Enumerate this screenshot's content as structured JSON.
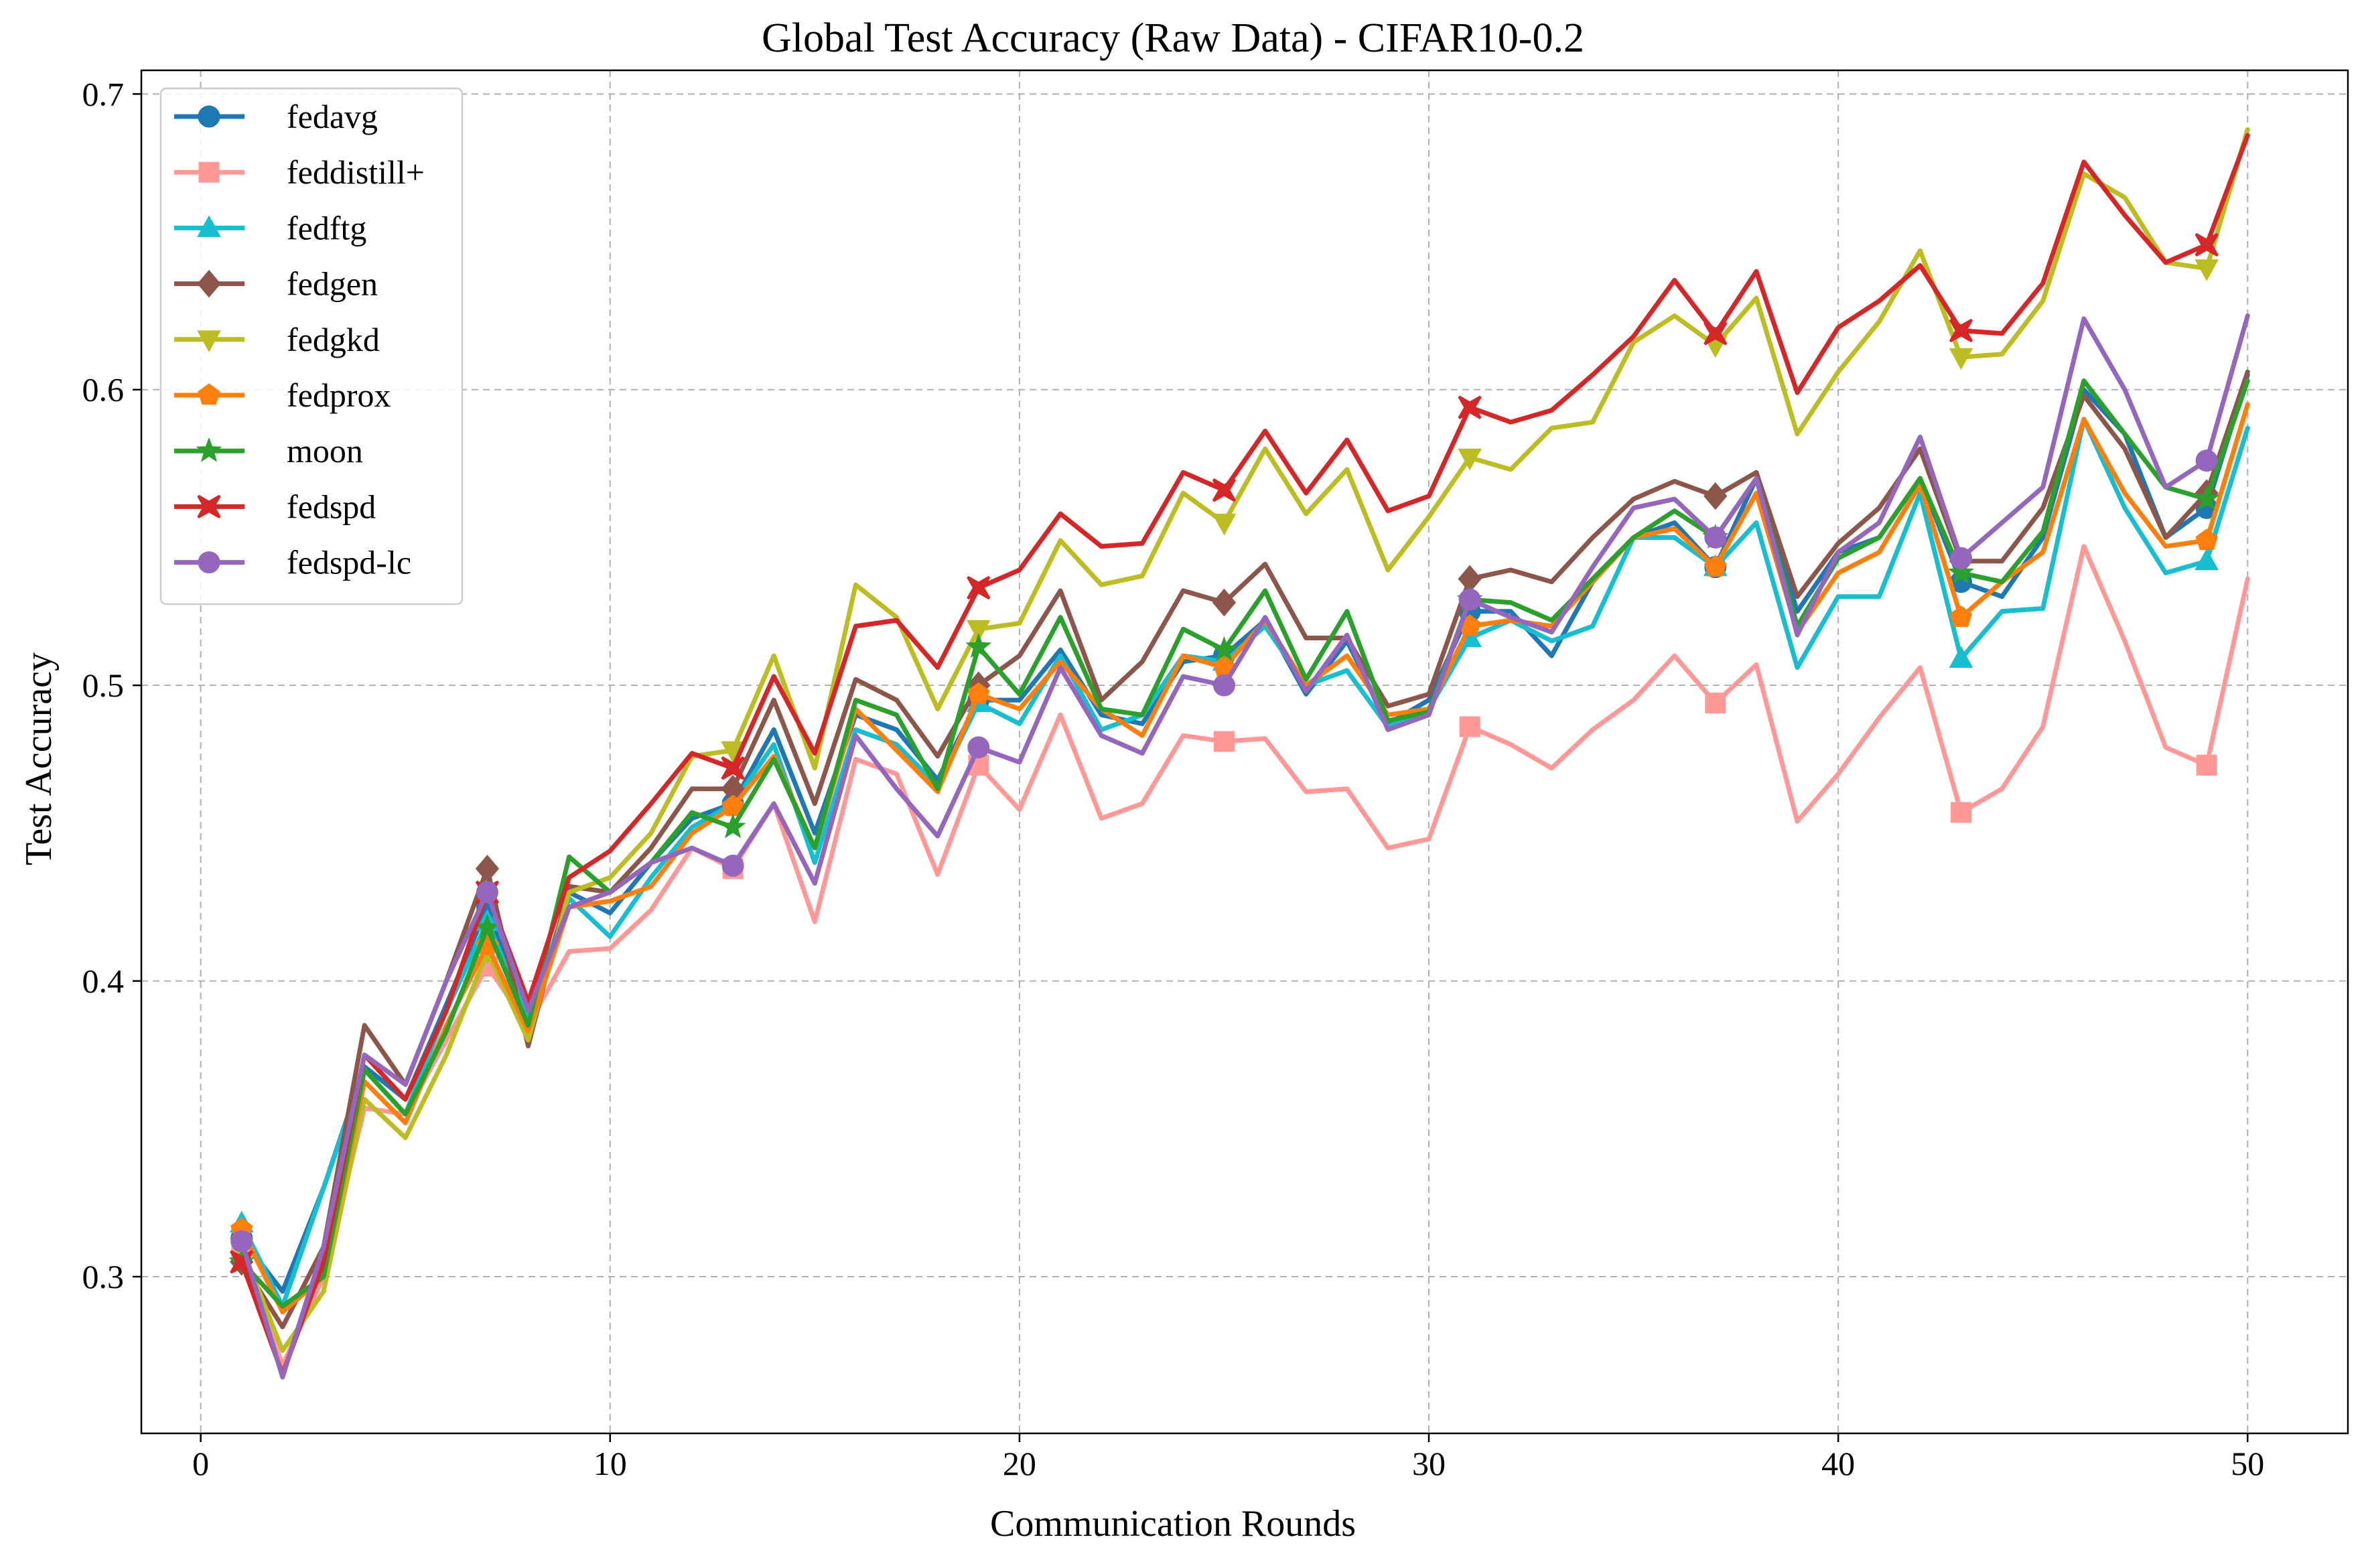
{
  "chart_data": {
    "type": "line",
    "title": "Global Test Accuracy (Raw Data) - CIFAR10-0.2",
    "xlabel": "Communication Rounds",
    "ylabel": "Test Accuracy",
    "xlim": [
      -1.45,
      52.45
    ],
    "ylim": [
      0.247,
      0.708
    ],
    "xticks": [
      0,
      10,
      20,
      30,
      40,
      50
    ],
    "xtick_labels": [
      "0",
      "10",
      "20",
      "30",
      "40",
      "50"
    ],
    "yticks": [
      0.3,
      0.4,
      0.5,
      0.6,
      0.7
    ],
    "ytick_labels": [
      "0.3",
      "0.4",
      "0.5",
      "0.6",
      "0.7"
    ],
    "grid": true,
    "legend_position": "top-left",
    "x": [
      1,
      2,
      3,
      4,
      5,
      6,
      7,
      8,
      9,
      10,
      11,
      12,
      13,
      14,
      15,
      16,
      17,
      18,
      19,
      20,
      21,
      22,
      23,
      24,
      25,
      26,
      27,
      28,
      29,
      30,
      31,
      32,
      33,
      34,
      35,
      36,
      37,
      38,
      39,
      40,
      41,
      42,
      43,
      44,
      45,
      46,
      47,
      48,
      49,
      50
    ],
    "series": [
      {
        "name": "fedavg",
        "color": "#1f77b4",
        "marker": "circle",
        "values": [
          0.313,
          0.295,
          0.33,
          0.371,
          0.36,
          0.392,
          0.425,
          0.385,
          0.43,
          0.423,
          0.44,
          0.455,
          0.46,
          0.485,
          0.45,
          0.49,
          0.485,
          0.468,
          0.495,
          0.495,
          0.512,
          0.49,
          0.487,
          0.508,
          0.51,
          0.522,
          0.497,
          0.515,
          0.487,
          0.495,
          0.525,
          0.525,
          0.51,
          0.535,
          0.55,
          0.555,
          0.54,
          0.57,
          0.525,
          0.545,
          0.55,
          0.57,
          0.535,
          0.53,
          0.55,
          0.6,
          0.585,
          0.55,
          0.56,
          0.605
        ]
      },
      {
        "name": "feddistill+",
        "color": "#ff9896",
        "marker": "square",
        "values": [
          0.31,
          0.27,
          0.3,
          0.357,
          0.355,
          0.38,
          0.405,
          0.385,
          0.41,
          0.411,
          0.424,
          0.445,
          0.438,
          0.46,
          0.42,
          0.475,
          0.47,
          0.436,
          0.473,
          0.458,
          0.49,
          0.455,
          0.46,
          0.483,
          0.481,
          0.482,
          0.464,
          0.465,
          0.445,
          0.448,
          0.486,
          0.48,
          0.472,
          0.485,
          0.495,
          0.51,
          0.494,
          0.507,
          0.454,
          0.47,
          0.489,
          0.506,
          0.457,
          0.465,
          0.486,
          0.547,
          0.515,
          0.479,
          0.473,
          0.536
        ]
      },
      {
        "name": "fedftg",
        "color": "#17becf",
        "marker": "triangle-up",
        "values": [
          0.318,
          0.29,
          0.33,
          0.37,
          0.355,
          0.39,
          0.42,
          0.387,
          0.428,
          0.415,
          0.435,
          0.452,
          0.46,
          0.48,
          0.44,
          0.485,
          0.48,
          0.466,
          0.494,
          0.487,
          0.51,
          0.485,
          0.49,
          0.51,
          0.508,
          0.52,
          0.5,
          0.505,
          0.486,
          0.492,
          0.516,
          0.522,
          0.515,
          0.52,
          0.55,
          0.55,
          0.54,
          0.555,
          0.506,
          0.53,
          0.53,
          0.565,
          0.509,
          0.525,
          0.526,
          0.59,
          0.56,
          0.538,
          0.542,
          0.587
        ]
      },
      {
        "name": "fedgen",
        "color": "#8c564b",
        "marker": "diamond",
        "values": [
          0.305,
          0.283,
          0.31,
          0.385,
          0.365,
          0.4,
          0.438,
          0.378,
          0.432,
          0.43,
          0.445,
          0.465,
          0.465,
          0.495,
          0.46,
          0.502,
          0.495,
          0.476,
          0.5,
          0.51,
          0.532,
          0.495,
          0.508,
          0.532,
          0.528,
          0.541,
          0.516,
          0.516,
          0.493,
          0.497,
          0.536,
          0.539,
          0.535,
          0.55,
          0.563,
          0.569,
          0.564,
          0.572,
          0.53,
          0.548,
          0.56,
          0.58,
          0.542,
          0.542,
          0.56,
          0.598,
          0.58,
          0.55,
          0.565,
          0.606
        ]
      },
      {
        "name": "fedgkd",
        "color": "#bcbd22",
        "marker": "triangle-down",
        "values": [
          0.31,
          0.275,
          0.295,
          0.36,
          0.347,
          0.375,
          0.41,
          0.38,
          0.43,
          0.435,
          0.45,
          0.476,
          0.478,
          0.51,
          0.472,
          0.534,
          0.523,
          0.492,
          0.519,
          0.521,
          0.549,
          0.534,
          0.537,
          0.565,
          0.555,
          0.58,
          0.558,
          0.573,
          0.539,
          0.557,
          0.577,
          0.573,
          0.587,
          0.589,
          0.616,
          0.625,
          0.615,
          0.631,
          0.585,
          0.606,
          0.623,
          0.647,
          0.611,
          0.612,
          0.63,
          0.673,
          0.665,
          0.643,
          0.641,
          0.688
        ]
      },
      {
        "name": "fedprox",
        "color": "#ff7f0e",
        "marker": "pentagon",
        "values": [
          0.316,
          0.288,
          0.3,
          0.366,
          0.352,
          0.385,
          0.412,
          0.383,
          0.425,
          0.427,
          0.432,
          0.45,
          0.459,
          0.476,
          0.445,
          0.492,
          0.478,
          0.464,
          0.497,
          0.492,
          0.508,
          0.492,
          0.483,
          0.51,
          0.506,
          0.522,
          0.5,
          0.51,
          0.49,
          0.492,
          0.52,
          0.522,
          0.52,
          0.535,
          0.55,
          0.553,
          0.54,
          0.565,
          0.518,
          0.538,
          0.545,
          0.568,
          0.523,
          0.535,
          0.545,
          0.59,
          0.565,
          0.547,
          0.549,
          0.595
        ]
      },
      {
        "name": "moon",
        "color": "#2ca02c",
        "marker": "star",
        "values": [
          0.305,
          0.29,
          0.3,
          0.37,
          0.355,
          0.383,
          0.418,
          0.385,
          0.442,
          0.43,
          0.44,
          0.457,
          0.452,
          0.475,
          0.445,
          0.495,
          0.49,
          0.465,
          0.513,
          0.497,
          0.523,
          0.492,
          0.49,
          0.519,
          0.512,
          0.532,
          0.502,
          0.525,
          0.488,
          0.491,
          0.529,
          0.528,
          0.522,
          0.536,
          0.55,
          0.559,
          0.55,
          0.57,
          0.52,
          0.543,
          0.55,
          0.57,
          0.538,
          0.535,
          0.552,
          0.603,
          0.585,
          0.567,
          0.563,
          0.603
        ]
      },
      {
        "name": "fedspd",
        "color": "#d62728",
        "marker": "x-filled",
        "values": [
          0.305,
          0.267,
          0.305,
          0.375,
          0.36,
          0.39,
          0.43,
          0.393,
          0.435,
          0.444,
          0.46,
          0.477,
          0.472,
          0.503,
          0.477,
          0.52,
          0.522,
          0.506,
          0.533,
          0.539,
          0.558,
          0.547,
          0.548,
          0.572,
          0.566,
          0.586,
          0.565,
          0.583,
          0.559,
          0.564,
          0.594,
          0.589,
          0.593,
          0.605,
          0.618,
          0.637,
          0.619,
          0.64,
          0.599,
          0.621,
          0.63,
          0.642,
          0.62,
          0.619,
          0.636,
          0.677,
          0.659,
          0.643,
          0.649,
          0.686
        ]
      },
      {
        "name": "fedspd-lc",
        "color": "#9467bd",
        "marker": "circle",
        "values": [
          0.312,
          0.266,
          0.31,
          0.375,
          0.365,
          0.4,
          0.43,
          0.39,
          0.425,
          0.43,
          0.44,
          0.445,
          0.439,
          0.46,
          0.433,
          0.483,
          0.465,
          0.449,
          0.479,
          0.474,
          0.506,
          0.483,
          0.477,
          0.503,
          0.5,
          0.523,
          0.498,
          0.517,
          0.485,
          0.49,
          0.529,
          0.523,
          0.518,
          0.54,
          0.56,
          0.563,
          0.55,
          0.57,
          0.517,
          0.545,
          0.555,
          0.584,
          0.543,
          0.555,
          0.567,
          0.624,
          0.6,
          0.567,
          0.576,
          0.625
        ]
      }
    ],
    "markers_at_x": [
      1,
      7,
      13,
      19,
      25,
      31,
      37,
      43,
      49
    ]
  }
}
